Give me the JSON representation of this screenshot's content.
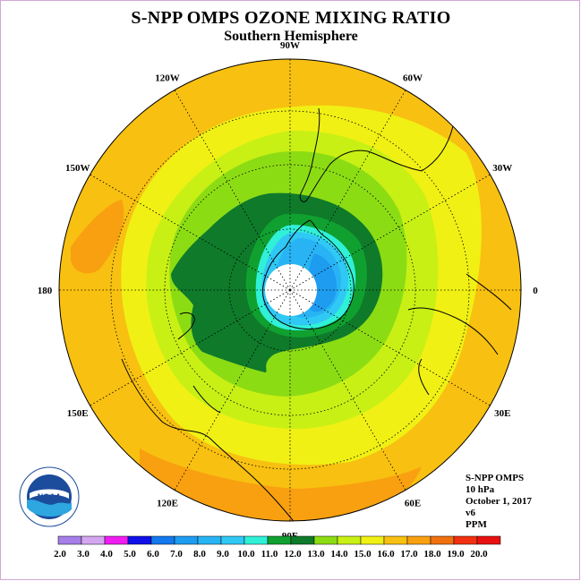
{
  "title": "S-NPP OMPS OZONE MIXING RATIO",
  "subtitle": "Southern Hemisphere",
  "longitude_labels": [
    {
      "text": "90W",
      "deg": -90
    },
    {
      "text": "60W",
      "deg": -60
    },
    {
      "text": "30W",
      "deg": -30
    },
    {
      "text": "0",
      "deg": 0
    },
    {
      "text": "30E",
      "deg": 30
    },
    {
      "text": "60E",
      "deg": 60
    },
    {
      "text": "90E",
      "deg": 90
    },
    {
      "text": "120E",
      "deg": 120
    },
    {
      "text": "150E",
      "deg": 150
    },
    {
      "text": "180",
      "deg": 180
    },
    {
      "text": "150W",
      "deg": -150
    },
    {
      "text": "120W",
      "deg": -120
    }
  ],
  "info": {
    "instrument": "S-NPP OMPS",
    "level": "10 hPa",
    "date": "October 1, 2017",
    "version": "v6",
    "units": "PPM"
  },
  "logo": {
    "text": "NOAA",
    "ring_text": "NATIONAL OCEANIC AND ATMOSPHERIC ADMINISTRATION · U.S. DEPARTMENT OF COMMERCE"
  },
  "colorbar": {
    "labels": [
      "2.0",
      "3.0",
      "4.0",
      "5.0",
      "6.0",
      "7.0",
      "8.0",
      "9.0",
      "10.0",
      "11.0",
      "12.0",
      "13.0",
      "14.0",
      "15.0",
      "16.0",
      "17.0",
      "18.0",
      "19.0",
      "20.0"
    ],
    "colors": [
      "#a57ee8",
      "#d4a6f0",
      "#f01cf0",
      "#1010e8",
      "#1478ee",
      "#1e9cf0",
      "#28b4f4",
      "#30c8f4",
      "#30f0d8",
      "#10a030",
      "#0e7a2a",
      "#8cdc14",
      "#c8f014",
      "#f0f014",
      "#f8c010",
      "#f8a010",
      "#f07010",
      "#f03010",
      "#e81010",
      "#a07050"
    ]
  },
  "map_colors": {
    "c16": "#f8c010",
    "c15": "#f0f014",
    "c14": "#c8f014",
    "c13": "#8cdc14",
    "c12": "#0e7a2a",
    "c11": "#10a030",
    "c10": "#30f0d8",
    "c9": "#30c8f4",
    "c8": "#28b4f4",
    "c7": "#1e9cf0",
    "c17": "#f8a010",
    "nodata": "#ffffff"
  }
}
